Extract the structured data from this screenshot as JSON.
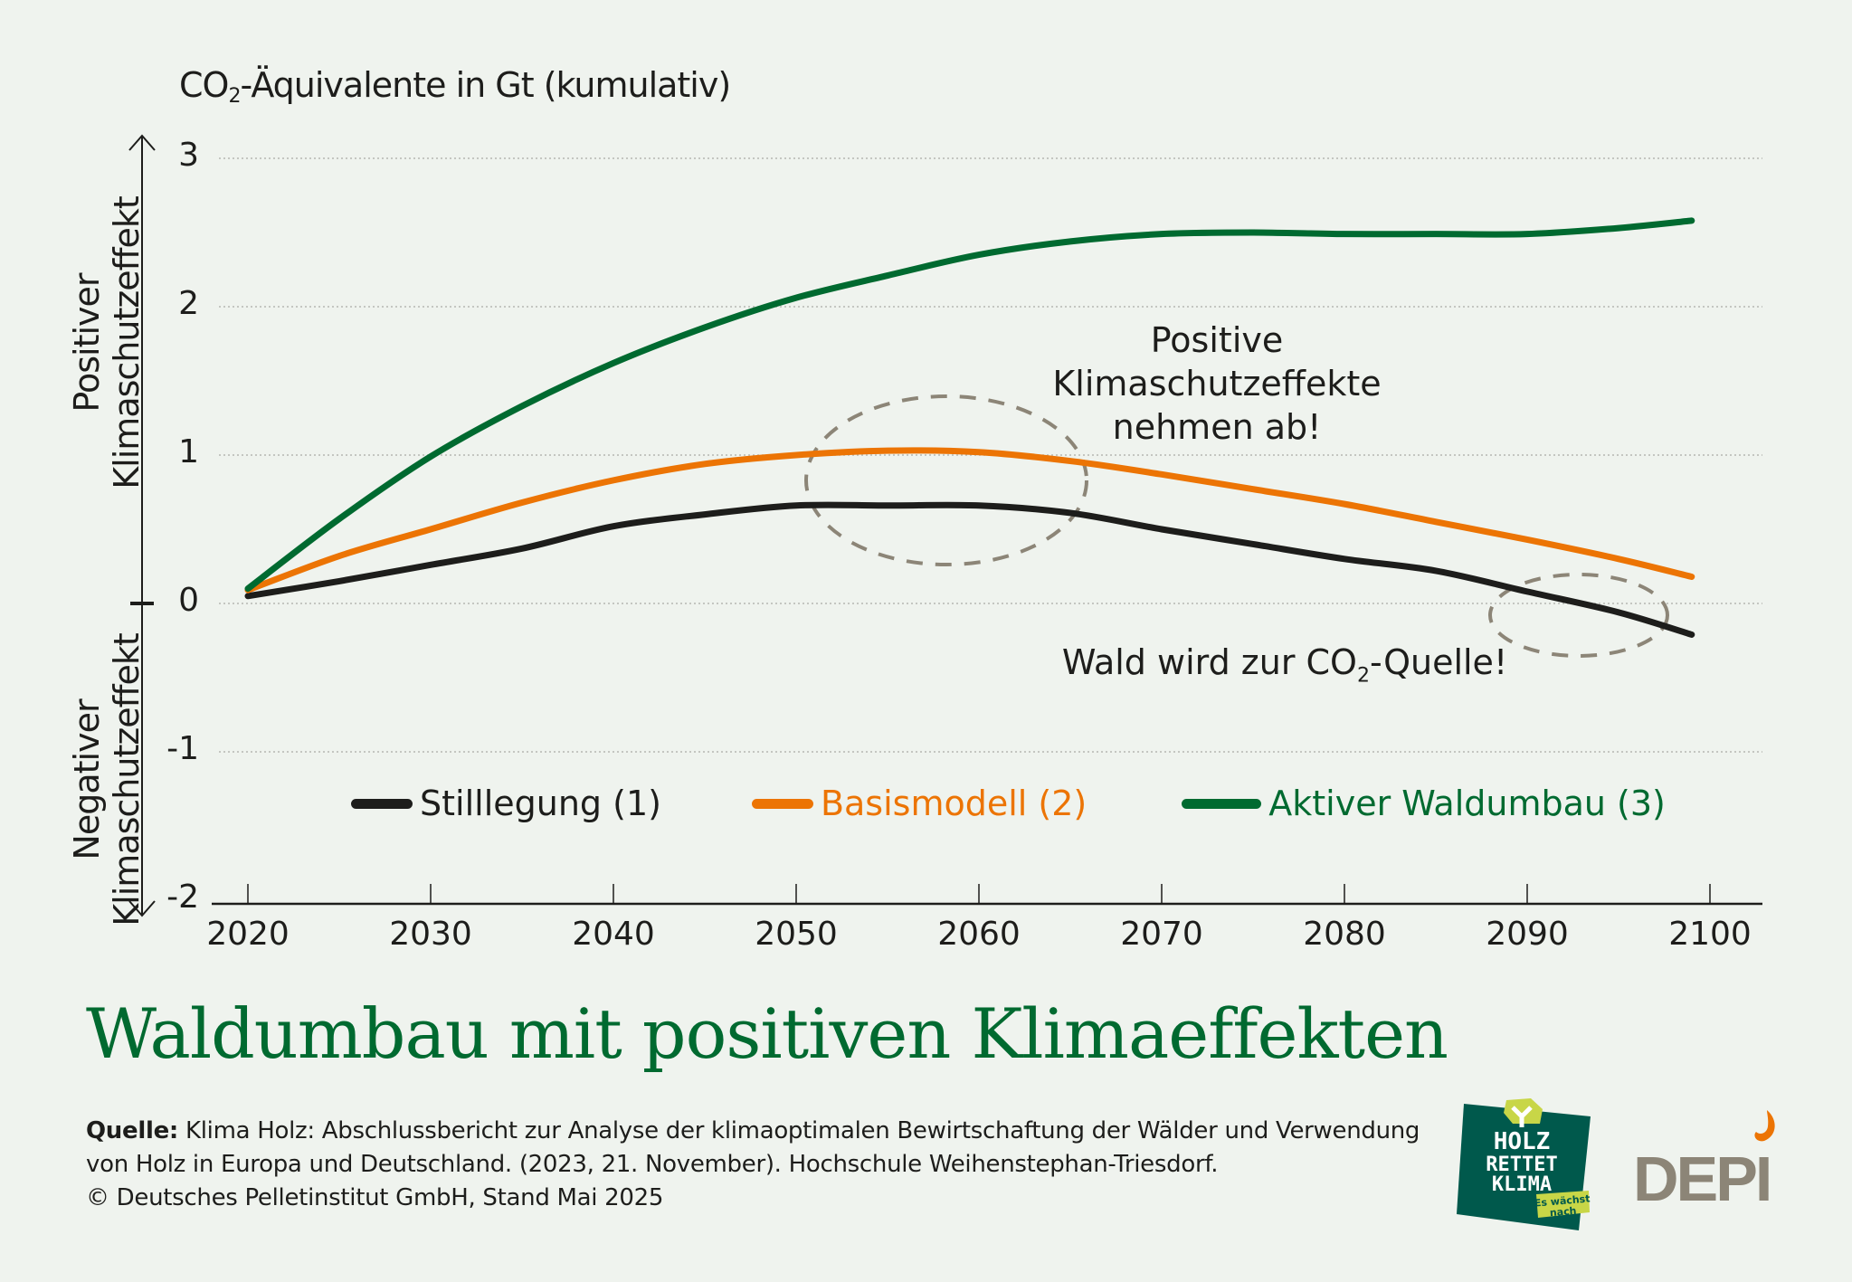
{
  "chart_data": {
    "type": "line",
    "title": "Waldumbau mit positiven Klimaeffekten",
    "ylabel": "CO₂-Äquivalente in Gt (kumulativ)",
    "ylabel_parts": {
      "pre": "CO",
      "sub": "2",
      "post": "-Äquivalente in Gt (kumulativ)"
    },
    "xlabel": "",
    "ylim": [
      -2,
      3
    ],
    "xlim": [
      2020,
      2100
    ],
    "yticks": [
      "3",
      "2",
      "1",
      "0",
      "-1",
      "-2"
    ],
    "ytick_values": [
      3,
      2,
      1,
      0,
      -1,
      -2
    ],
    "xticks": [
      "2020",
      "2030",
      "2040",
      "2050",
      "2060",
      "2070",
      "2080",
      "2090",
      "2100"
    ],
    "xtick_values": [
      2020,
      2030,
      2040,
      2050,
      2060,
      2070,
      2080,
      2090,
      2100
    ],
    "grid": "horizontal dotted",
    "legend_position": "inside-bottom",
    "x": [
      2020,
      2025,
      2030,
      2035,
      2040,
      2045,
      2050,
      2055,
      2060,
      2065,
      2070,
      2075,
      2080,
      2085,
      2090,
      2095,
      2099
    ],
    "series": [
      {
        "name": "Stilllegung (1)",
        "color": "#1d1d1b",
        "values": [
          0.05,
          0.15,
          0.26,
          0.37,
          0.52,
          0.6,
          0.66,
          0.66,
          0.66,
          0.61,
          0.5,
          0.4,
          0.3,
          0.22,
          0.08,
          -0.06,
          -0.21
        ]
      },
      {
        "name": "Basismodell (2)",
        "color": "#ec7404",
        "values": [
          0.09,
          0.32,
          0.5,
          0.68,
          0.83,
          0.94,
          1.0,
          1.03,
          1.02,
          0.96,
          0.87,
          0.77,
          0.67,
          0.55,
          0.43,
          0.3,
          0.18
        ]
      },
      {
        "name": "Aktiver Waldumbau (3)",
        "color": "#006a30",
        "values": [
          0.1,
          0.57,
          0.99,
          1.33,
          1.62,
          1.86,
          2.06,
          2.21,
          2.35,
          2.44,
          2.49,
          2.5,
          2.49,
          2.49,
          2.49,
          2.53,
          2.58
        ]
      }
    ],
    "annotations": [
      {
        "text": "Positive Klimaschutzeffekte nehmen ab!",
        "lines": [
          "Positive",
          "Klimaschutzeffekte",
          "nehmen ab!"
        ],
        "highlight_x": [
          2050,
          2065
        ]
      },
      {
        "text": "Wald wird zur CO₂-Quelle!",
        "parts": {
          "pre": "Wald wird zur CO",
          "sub": "2",
          "post": "-Quelle!"
        },
        "highlight_x": [
          2088,
          2098
        ]
      }
    ],
    "side_labels": {
      "positive": [
        "Positiver",
        "Klimaschutzeffekt"
      ],
      "negative": [
        "Negativer",
        "Klimaschutzeffekt"
      ]
    }
  },
  "source": {
    "label": "Quelle:",
    "text": "Klima Holz: Abschlussbericht zur Analyse der klimaoptimalen Bewirtschaftung der Wälder und Verwendung von Holz in Europa und Deutschland. (2023, 21. November). Hochschule Weihenstephan-Triesdorf.",
    "copyright": "© Deutsches Pelletinstitut GmbH, Stand Mai 2025"
  },
  "logos": {
    "hrk": {
      "lines": [
        "HOLZ",
        "RETTET",
        "KLIMA"
      ],
      "tagline": [
        "Es wächst",
        "nach"
      ]
    },
    "depi": {
      "text": "DEPI"
    }
  },
  "colors": {
    "background": "#eff3ee",
    "black": "#1d1d1b",
    "orange": "#ec7404",
    "green": "#006a30",
    "ellipse": "#8c8577",
    "hrk_bg": "#00594c",
    "hrk_accent": "#c8d647",
    "depi_gray": "#8c8577"
  }
}
